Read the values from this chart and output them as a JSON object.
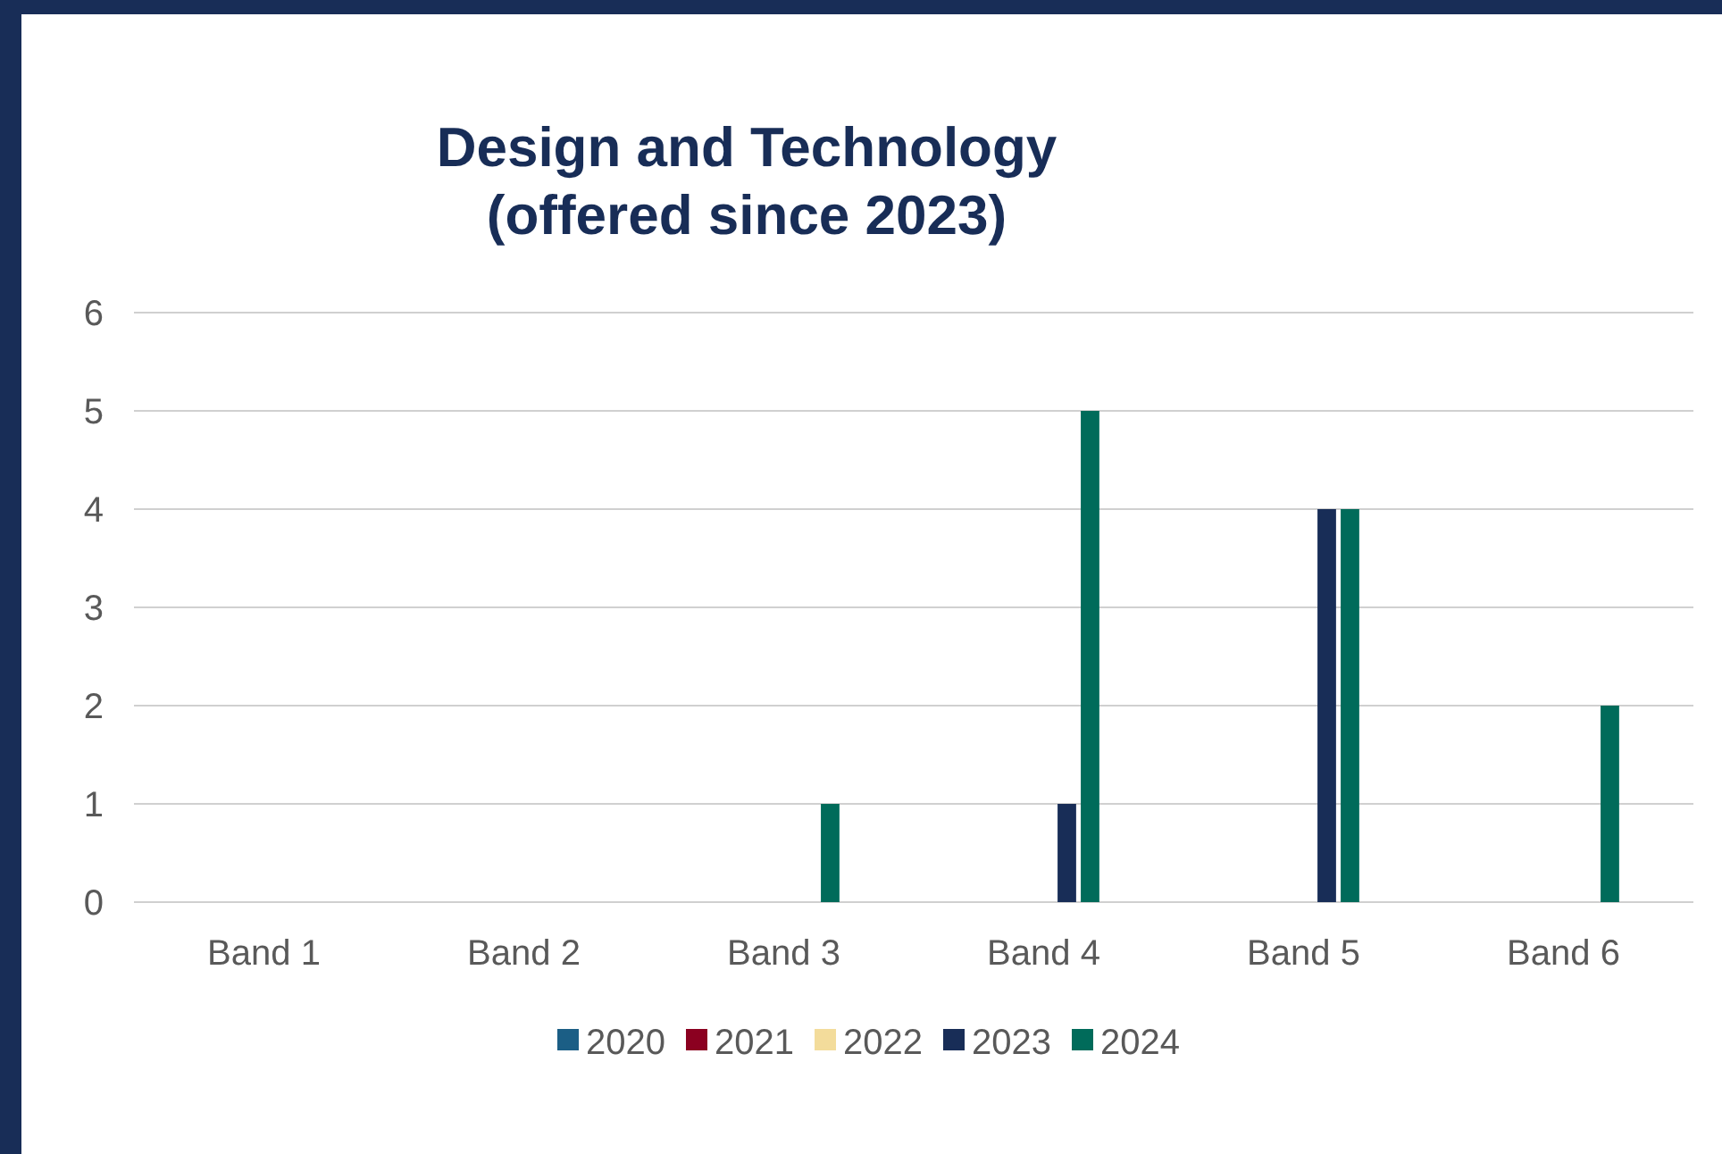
{
  "chart_data": {
    "type": "bar",
    "title": "Design and Technology\n(offered since 2023)",
    "categories": [
      "Band 1",
      "Band 2",
      "Band 3",
      "Band 4",
      "Band 5",
      "Band 6"
    ],
    "series": [
      {
        "name": "2020",
        "color": "#1b5e85",
        "values": [
          0,
          0,
          0,
          0,
          0,
          0
        ]
      },
      {
        "name": "2021",
        "color": "#8b0020",
        "values": [
          0,
          0,
          0,
          0,
          0,
          0
        ]
      },
      {
        "name": "2022",
        "color": "#f3dc9b",
        "values": [
          0,
          0,
          0,
          0,
          0,
          0
        ]
      },
      {
        "name": "2023",
        "color": "#182d57",
        "values": [
          0,
          0,
          0,
          1,
          4,
          0
        ]
      },
      {
        "name": "2024",
        "color": "#006b5a",
        "values": [
          0,
          0,
          1,
          5,
          4,
          2
        ]
      }
    ],
    "ylim": [
      0,
      6
    ],
    "yticks": [
      0,
      1,
      2,
      3,
      4,
      5,
      6
    ],
    "grid": "y",
    "legend": "bottom"
  }
}
